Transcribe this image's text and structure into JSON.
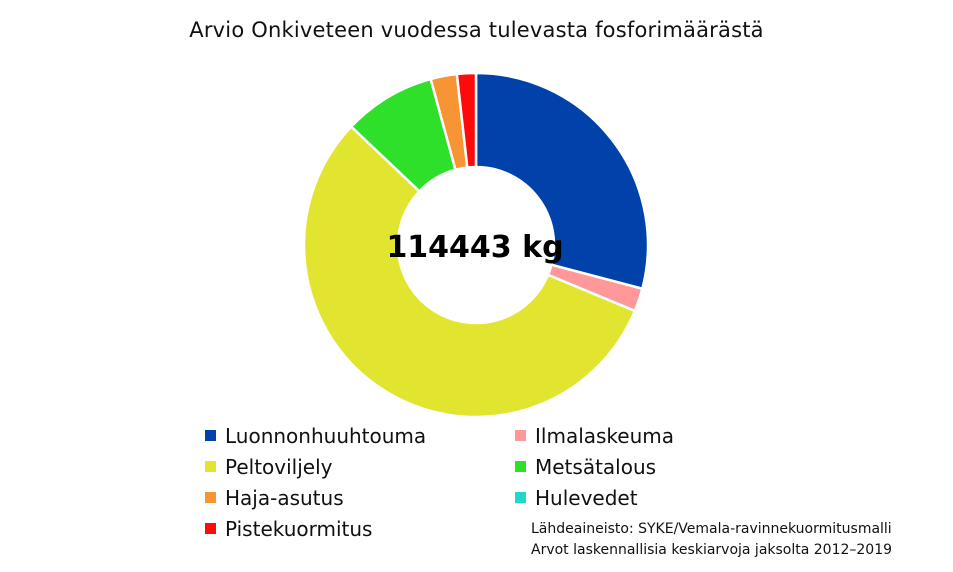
{
  "chart_data": {
    "type": "pie",
    "variant": "donut",
    "title": "Arvio Onkiveteen vuodessa tulevasta fosforimäärästä",
    "center_label": "114443 kg",
    "categories": [
      "Luonnonhuuhtouma",
      "Ilmalaskeuma",
      "Peltoviljely",
      "Metsätalous",
      "Haja-asutus",
      "Hulevedet",
      "Pistekuormitus"
    ],
    "values_percent": [
      29.5,
      2.2,
      56.6,
      8.8,
      2.5,
      0.0,
      1.8
    ],
    "colors": [
      "#0042A9",
      "#FF9999",
      "#E1E52F",
      "#2EE02A",
      "#F79433",
      "#21D8C8",
      "#FF0A0A"
    ],
    "legend_position": "bottom",
    "notes": [
      "Lähdeaineisto: SYKE/Vemala-ravinnekuormitusmalli",
      "Arvot laskennallisia keskiarvoja jaksolta 2012–2019"
    ]
  }
}
